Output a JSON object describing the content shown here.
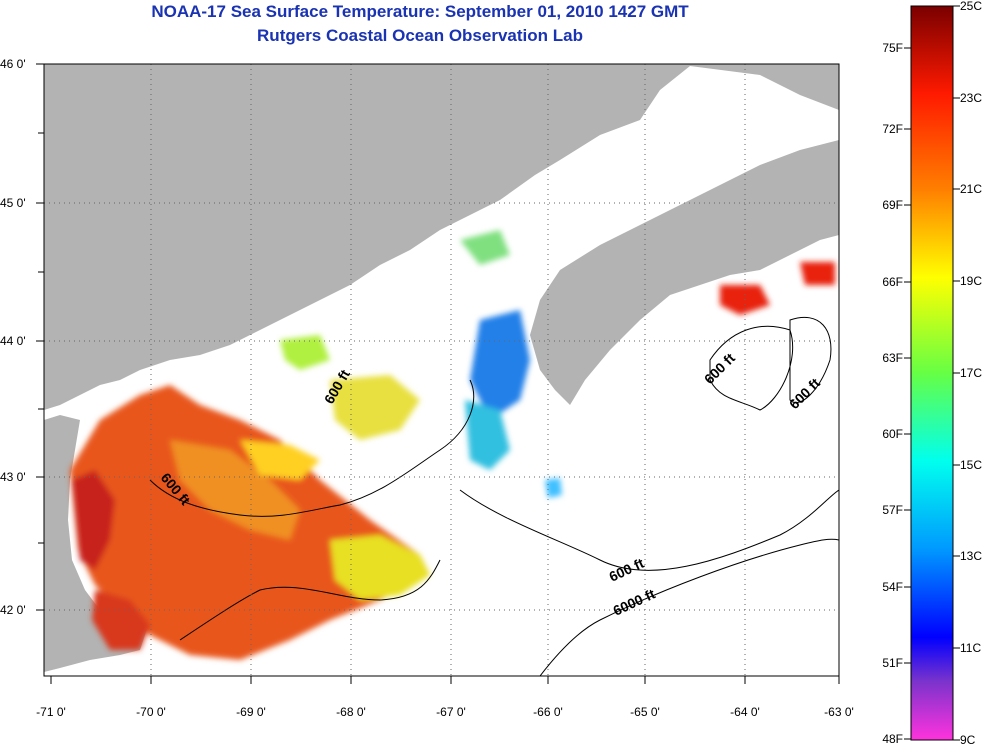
{
  "title": "NOAA-17 Sea Surface Temperature:  September 01, 2010 1427 GMT",
  "subtitle": "Rutgers Coastal Ocean Observation Lab",
  "lat_labels": [
    "46 0'",
    "45 0'",
    "44 0'",
    "43 0'",
    "42 0'"
  ],
  "lon_labels": [
    "-71 0'",
    "-70 0'",
    "-69 0'",
    "-68 0'",
    "-67 0'",
    "-66 0'",
    "-65 0'",
    "-64 0'",
    "-63 0'"
  ],
  "colorbar": {
    "celsius_labels": [
      "25C",
      "23C",
      "21C",
      "19C",
      "17C",
      "15C",
      "13C",
      "11C",
      "9C"
    ],
    "fahrenheit_labels": [
      "75F",
      "72F",
      "69F",
      "66F",
      "63F",
      "60F",
      "57F",
      "54F",
      "51F",
      "48F"
    ]
  },
  "contour_labels": [
    "600 ft",
    "600 ft",
    "600 ft",
    "600 ft",
    "600 ft",
    "6000 ft"
  ],
  "colors": {
    "land": "#b3b3b3",
    "title": "#1a33b3"
  }
}
